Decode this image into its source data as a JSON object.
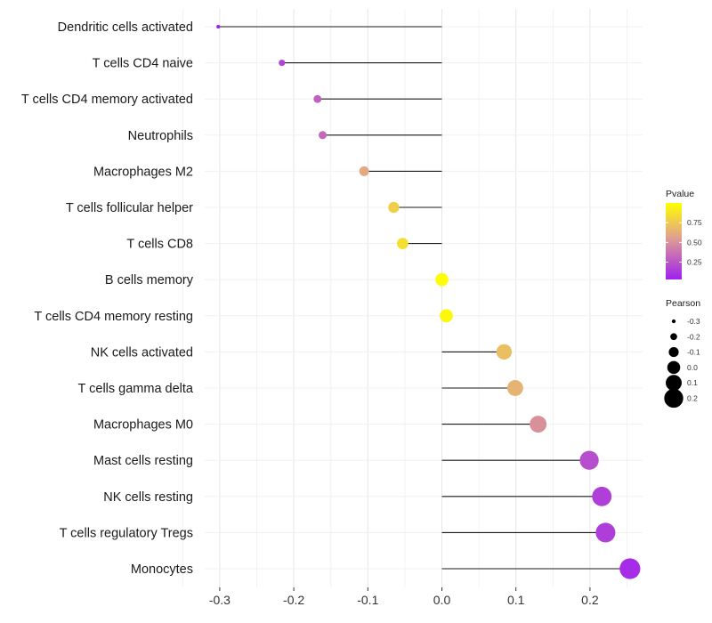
{
  "chart_data": {
    "type": "lollipop",
    "title": "",
    "xlabel": "",
    "ylabel": "",
    "xlim": [
      -0.32,
      0.27
    ],
    "x_ticks": [
      "-0.3",
      "-0.2",
      "-0.1",
      "0.0",
      "0.1",
      "0.2"
    ],
    "x_tick_values": [
      -0.3,
      -0.2,
      -0.1,
      0.0,
      0.1,
      0.2
    ],
    "categories": [
      "Dendritic cells activated",
      "T cells CD4 naive",
      "T cells CD4 memory activated",
      "Neutrophils",
      "Macrophages M2",
      "T cells follicular helper",
      "T cells CD8",
      "B cells memory",
      "T cells CD4 memory resting",
      "NK cells activated",
      "T cells gamma delta",
      "Macrophages M0",
      "Mast cells resting",
      "NK cells resting",
      "T cells regulatory  Tregs ",
      "Monocytes"
    ],
    "values": [
      -0.302,
      -0.216,
      -0.168,
      -0.161,
      -0.105,
      -0.065,
      -0.053,
      0.0,
      0.006,
      0.084,
      0.099,
      0.13,
      0.199,
      0.216,
      0.221,
      0.254
    ],
    "pvalues": [
      0.03,
      0.18,
      0.3,
      0.33,
      0.6,
      0.78,
      0.85,
      0.99,
      0.97,
      0.7,
      0.65,
      0.5,
      0.22,
      0.16,
      0.15,
      0.08
    ],
    "legend_pvalue": {
      "title": "Pvalue",
      "ticks": [
        "0.75",
        "0.50",
        "0.25"
      ],
      "tick_values": [
        0.75,
        0.5,
        0.25
      ],
      "range": [
        0.03,
        1.0
      ],
      "color_low": "#A020F0",
      "color_mid": "#E0A090",
      "color_high": "#FFFF00"
    },
    "legend_pearson": {
      "title": "Pearson",
      "labels": [
        "-0.3",
        "-0.2",
        "-0.1",
        "0.0",
        "0.1",
        "0.2"
      ],
      "values": [
        -0.3,
        -0.2,
        -0.1,
        0.0,
        0.1,
        0.2
      ]
    },
    "grid": true,
    "legend_position": "right"
  }
}
